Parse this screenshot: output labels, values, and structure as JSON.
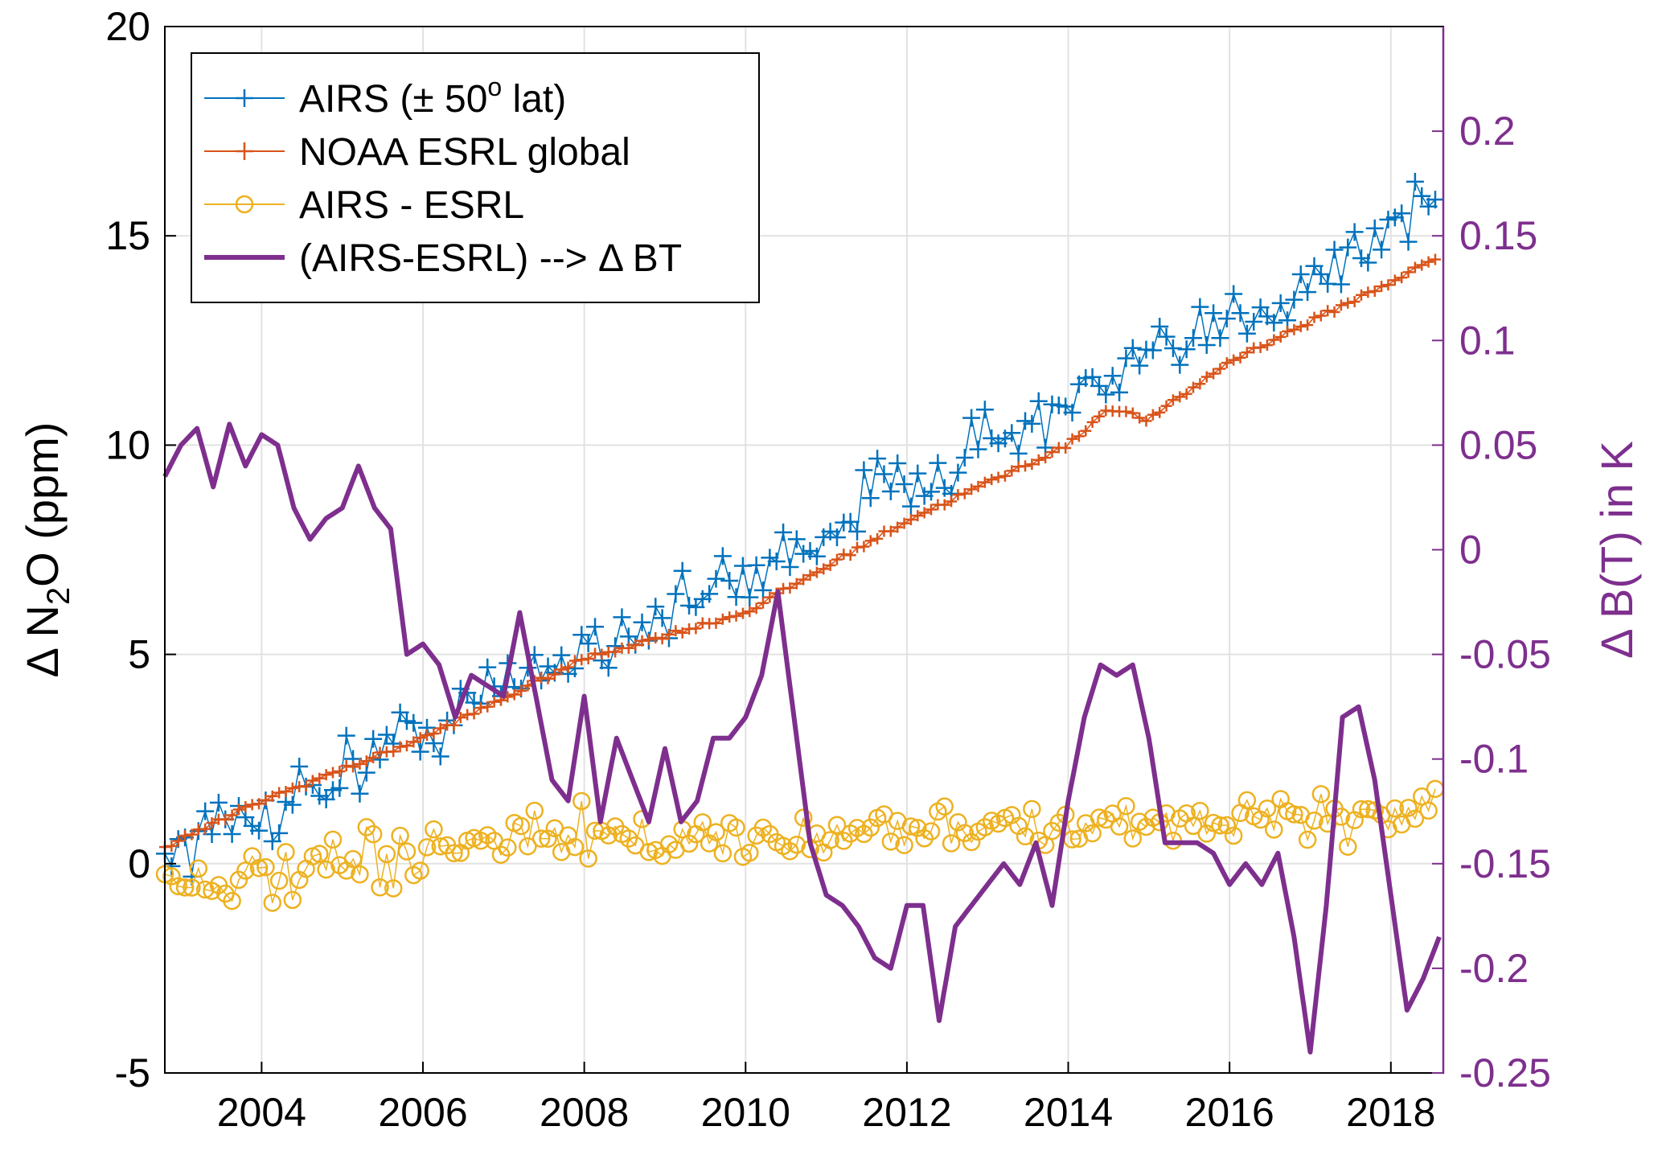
{
  "chart_data": {
    "type": "line",
    "title": "",
    "xlabel": "",
    "ylabel": {
      "prefix": "Δ N",
      "sub": "2",
      "suffix": "O (ppm)"
    },
    "ylabel_right": "Δ B(T) in K",
    "xlim": [
      2002.8,
      2018.65
    ],
    "ylim": [
      -5,
      20
    ],
    "ylim_right": [
      -0.25,
      0.25
    ],
    "x_ticks": [
      2004,
      2006,
      2008,
      2010,
      2012,
      2014,
      2016,
      2018
    ],
    "x_tick_labels": [
      "2004",
      "2006",
      "2008",
      "2010",
      "2012",
      "2014",
      "2016",
      "2018"
    ],
    "y_ticks": [
      -5,
      0,
      5,
      10,
      15,
      20
    ],
    "y_tick_labels": [
      "-5",
      "0",
      "5",
      "10",
      "15",
      "20"
    ],
    "y_right_ticks": [
      -0.25,
      -0.2,
      -0.15,
      -0.1,
      -0.05,
      0,
      0.05,
      0.1,
      0.15,
      0.2
    ],
    "y_right_tick_labels": [
      "-0.25",
      "-0.2",
      "-0.15",
      "-0.1",
      "-0.05",
      "0",
      "0.05",
      "0.1",
      "0.15",
      "0.2"
    ],
    "grid": true,
    "legend": {
      "placement": "top-left",
      "entries": [
        {
          "name": "AIRS (± 50",
          "sup": "o",
          "tail": " lat)",
          "color": "#0072BD",
          "marker": "plus"
        },
        {
          "name": "NOAA ESRL global",
          "sup": "",
          "tail": "",
          "color": "#D95319",
          "marker": "plus"
        },
        {
          "name": "AIRS - ESRL",
          "sup": "",
          "tail": "",
          "color": "#EDB120",
          "marker": "circle"
        },
        {
          "name": "(AIRS-ESRL) --> Δ BT",
          "sup": "",
          "tail": "",
          "color": "#7E2F8E",
          "marker": "none"
        }
      ]
    },
    "series": [
      {
        "name": "AIRS (± 50° lat)",
        "axis": "left",
        "color": "#0072BD",
        "marker": "plus",
        "trend": {
          "x": [
            2002.8,
            2004,
            2006,
            2008,
            2010,
            2012,
            2014,
            2016,
            2018,
            2018.6
          ],
          "y": [
            0.3,
            1.2,
            3.2,
            5.2,
            6.8,
            9.2,
            10.9,
            12.9,
            15.2,
            16.0
          ]
        },
        "noise": 0.6
      },
      {
        "name": "NOAA ESRL global",
        "axis": "left",
        "color": "#D95319",
        "marker": "plus",
        "x": [
          2002.8,
          2004,
          2006,
          2008,
          2010,
          2012,
          2014,
          2014.5,
          2015,
          2016,
          2018,
          2018.6
        ],
        "y": [
          0.4,
          1.5,
          3.0,
          4.9,
          6.0,
          8.2,
          10.0,
          10.9,
          10.6,
          12.0,
          13.9,
          14.5
        ]
      },
      {
        "name": "AIRS - ESRL",
        "axis": "left",
        "color": "#EDB120",
        "marker": "circle",
        "trend": {
          "x": [
            2002.8,
            2004,
            2006,
            2008,
            2010,
            2012,
            2014,
            2016,
            2018,
            2018.6
          ],
          "y": [
            -0.3,
            -0.5,
            0.3,
            0.6,
            0.6,
            0.9,
            0.8,
            1.1,
            1.2,
            1.4
          ]
        },
        "noise": 0.45
      },
      {
        "name": "(AIRS-ESRL) --> Δ BT",
        "axis": "right",
        "color": "#7E2F8E",
        "marker": "none",
        "x": [
          2002.8,
          2003.0,
          2003.2,
          2003.4,
          2003.6,
          2003.8,
          2004.0,
          2004.2,
          2004.4,
          2004.6,
          2004.8,
          2005.0,
          2005.2,
          2005.4,
          2005.6,
          2005.8,
          2006.0,
          2006.2,
          2006.4,
          2006.6,
          2006.8,
          2007.0,
          2007.2,
          2007.4,
          2007.6,
          2007.8,
          2008.0,
          2008.2,
          2008.4,
          2008.6,
          2008.8,
          2009.0,
          2009.2,
          2009.4,
          2009.6,
          2009.8,
          2010.0,
          2010.2,
          2010.4,
          2010.6,
          2010.8,
          2011.0,
          2011.2,
          2011.4,
          2011.6,
          2011.8,
          2012.0,
          2012.2,
          2012.4,
          2012.6,
          2012.8,
          2013.0,
          2013.2,
          2013.4,
          2013.6,
          2013.8,
          2014.0,
          2014.2,
          2014.4,
          2014.6,
          2014.8,
          2015.0,
          2015.2,
          2015.4,
          2015.6,
          2015.8,
          2016.0,
          2016.2,
          2016.4,
          2016.6,
          2016.8,
          2017.0,
          2017.2,
          2017.4,
          2017.6,
          2017.8,
          2018.0,
          2018.2,
          2018.4,
          2018.6
        ],
        "y": [
          0.035,
          0.05,
          0.058,
          0.03,
          0.06,
          0.04,
          0.055,
          0.05,
          0.02,
          0.005,
          0.015,
          0.02,
          0.04,
          0.02,
          0.01,
          -0.05,
          -0.045,
          -0.055,
          -0.08,
          -0.06,
          -0.065,
          -0.07,
          -0.03,
          -0.07,
          -0.11,
          -0.12,
          -0.07,
          -0.13,
          -0.09,
          -0.11,
          -0.13,
          -0.095,
          -0.13,
          -0.12,
          -0.09,
          -0.09,
          -0.08,
          -0.06,
          -0.02,
          -0.08,
          -0.14,
          -0.165,
          -0.17,
          -0.18,
          -0.195,
          -0.2,
          -0.17,
          -0.17,
          -0.225,
          -0.18,
          -0.17,
          -0.16,
          -0.15,
          -0.16,
          -0.14,
          -0.17,
          -0.12,
          -0.08,
          -0.055,
          -0.06,
          -0.055,
          -0.09,
          -0.14,
          -0.14,
          -0.14,
          -0.145,
          -0.16,
          -0.15,
          -0.16,
          -0.145,
          -0.185,
          -0.24,
          -0.17,
          -0.08,
          -0.075,
          -0.11,
          -0.165,
          -0.22,
          -0.205,
          -0.185
        ]
      }
    ]
  }
}
